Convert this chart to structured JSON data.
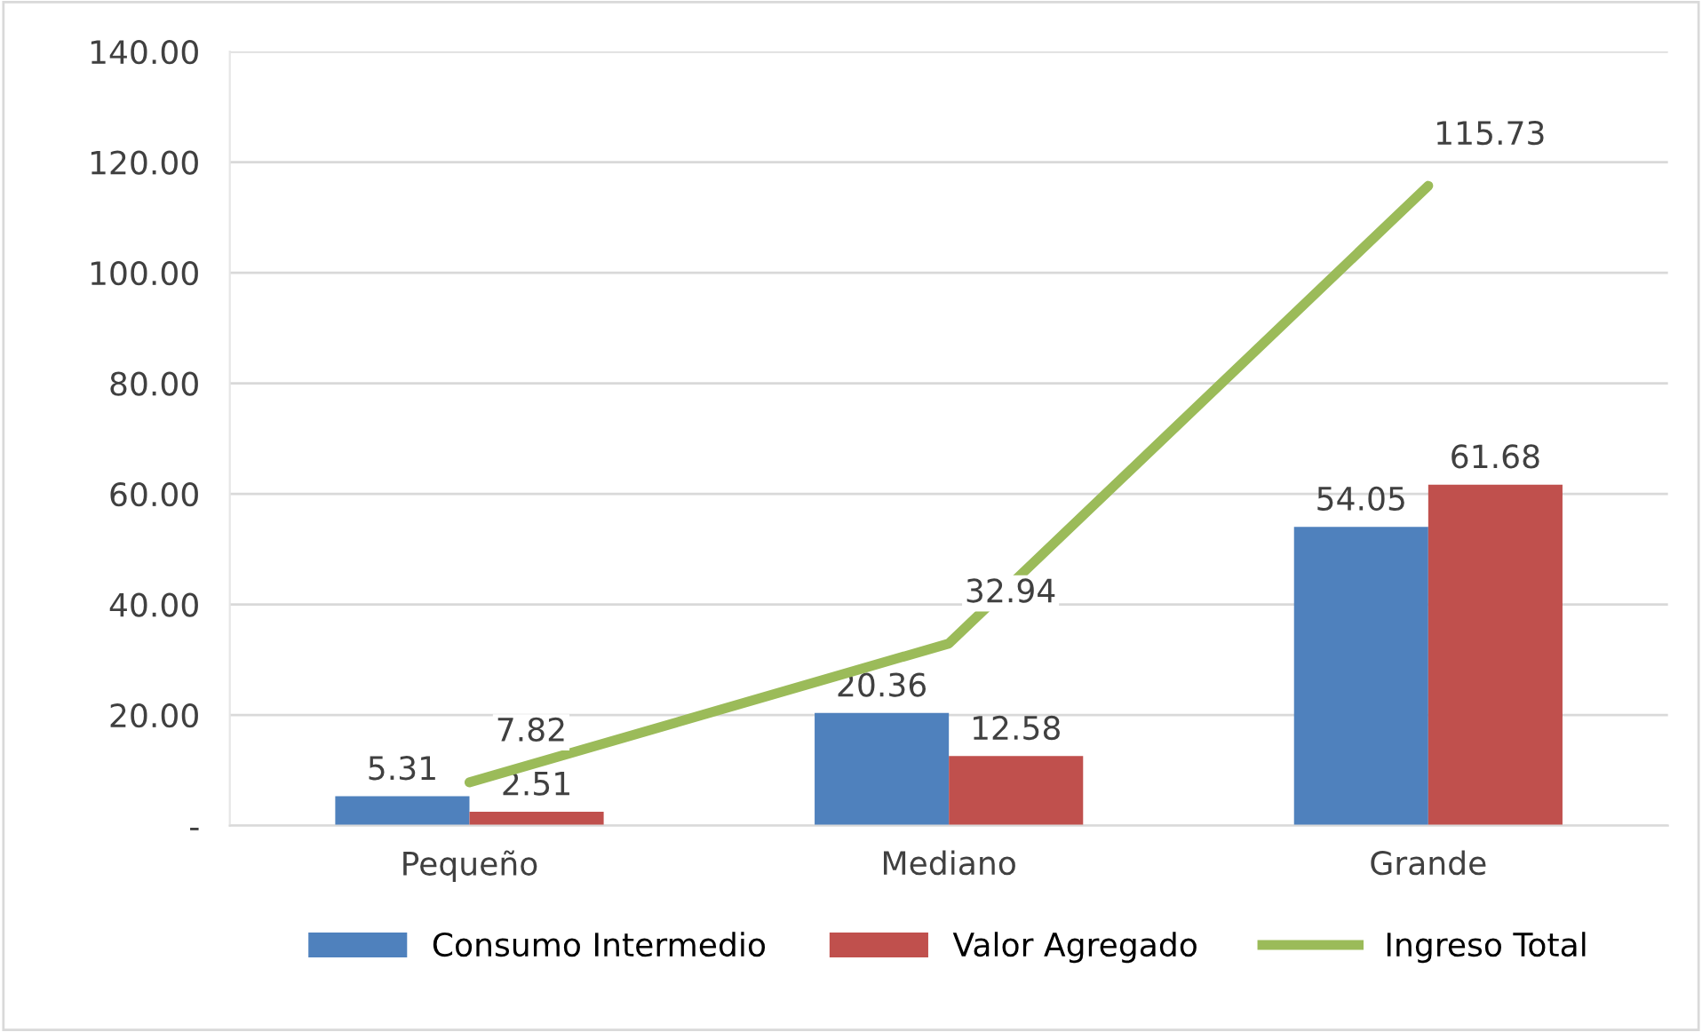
{
  "chart_data": {
    "type": "bar",
    "categories": [
      "Pequeño",
      "Mediano",
      "Grande"
    ],
    "series": [
      {
        "name": "Consumo Intermedio",
        "color": "#4f81bd",
        "values": [
          5.31,
          20.36,
          54.05
        ]
      },
      {
        "name": "Valor Agregado",
        "color": "#c0504d",
        "values": [
          2.51,
          12.58,
          61.68
        ]
      },
      {
        "name": "Ingreso Total",
        "type": "line",
        "color": "#9bbb59",
        "values": [
          7.82,
          32.94,
          115.73
        ]
      }
    ],
    "ylim": [
      0,
      140
    ],
    "yticks": [
      {
        "value": 0,
        "label": "-"
      },
      {
        "value": 20,
        "label": "20.00"
      },
      {
        "value": 40,
        "label": "40.00"
      },
      {
        "value": 60,
        "label": "60.00"
      },
      {
        "value": 80,
        "label": "80.00"
      },
      {
        "value": 100,
        "label": "100.00"
      },
      {
        "value": 120,
        "label": "120.00"
      },
      {
        "value": 140,
        "label": "140.00"
      }
    ],
    "grid": "y",
    "legend": "bottom",
    "data_labels": true,
    "marker": "none"
  }
}
